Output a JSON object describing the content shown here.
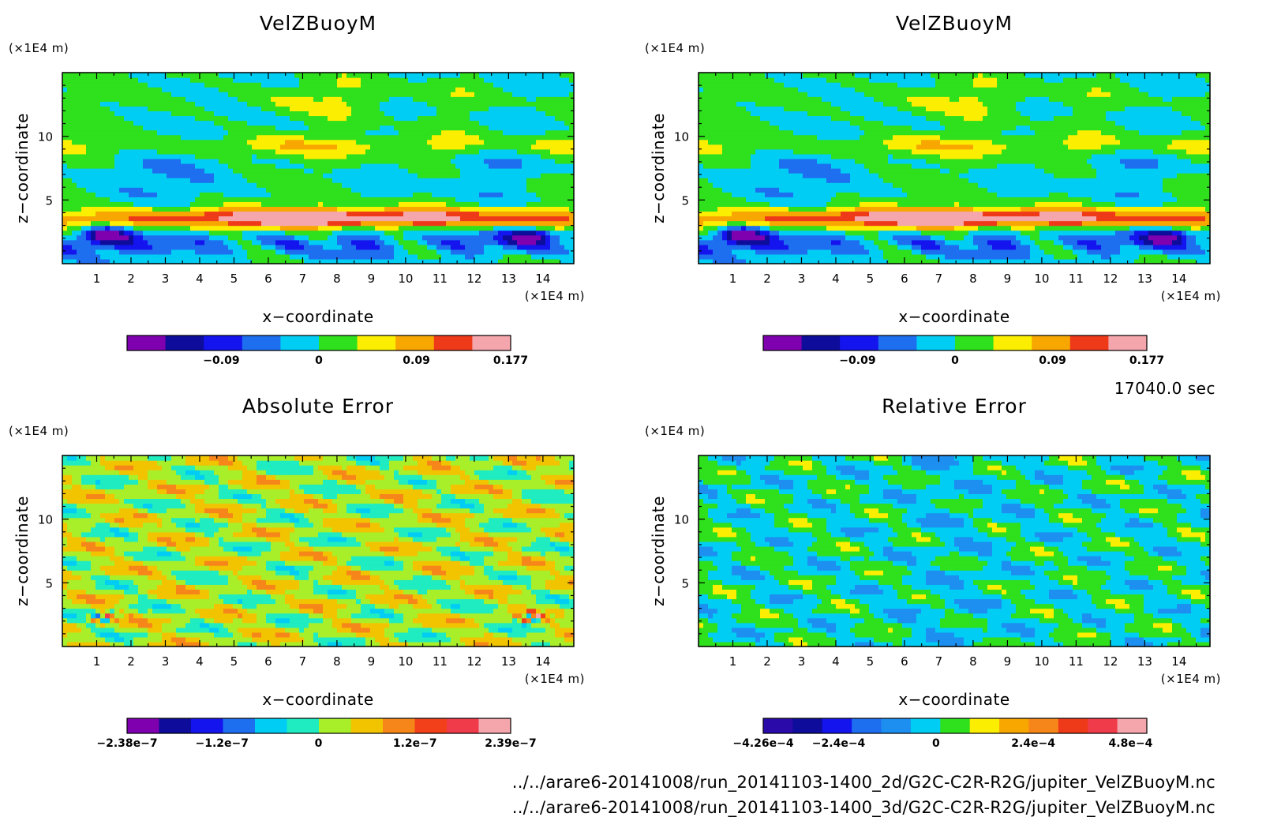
{
  "figure": {
    "time_text": "17040.0 sec",
    "footer_lines": [
      "../../arare6-20141008/run_20141103-1400_2d/G2C-C2R-R2G/jupiter_VelZBuoyM.nc",
      "../../arare6-20141008/run_20141103-1400_3d/G2C-C2R-R2G/jupiter_VelZBuoyM.nc"
    ]
  },
  "colors": {
    "palette_main": [
      "#7f00ae",
      "#0d0c9b",
      "#1414ee",
      "#1e6ef0",
      "#00cdf4",
      "#2fe01c",
      "#fcee00",
      "#f8a600",
      "#ef3a1a",
      "#f5a6ad"
    ],
    "palette_abs": [
      "#7f00ae",
      "#0d0c9b",
      "#1414ee",
      "#1e6ef0",
      "#00cdf4",
      "#1fecc0",
      "#a8ef2a",
      "#f2c400",
      "#f7861a",
      "#f2401a",
      "#f03c4a",
      "#f5a6ad"
    ],
    "palette_rel": [
      "#2a0aa8",
      "#0d0c9b",
      "#1414ee",
      "#1e6ef0",
      "#1c8ff0",
      "#00cdf4",
      "#2fe01c",
      "#fcee00",
      "#f8a600",
      "#f7861a",
      "#ef3a1a",
      "#f03c4a",
      "#f5a6ad"
    ]
  },
  "chart_data": [
    {
      "type": "heatmap",
      "title": "VelZBuoyM",
      "xlabel": "x−coordinate",
      "ylabel": "z−coordinate",
      "x_unit": "(×1E4 m)",
      "y_unit": "(×1E4 m)",
      "xlim": [
        0,
        14.9
      ],
      "ylim": [
        0,
        15
      ],
      "x_ticks": [
        "1",
        "2",
        "3",
        "4",
        "5",
        "6",
        "7",
        "8",
        "9",
        "10",
        "11",
        "12",
        "13",
        "14"
      ],
      "y_ticks": [
        "5",
        "10"
      ],
      "colorbar": {
        "palette": "palette_main",
        "labels": [
          "−0.09",
          "0",
          "0.09",
          "0.177"
        ],
        "label_values": [
          -0.09,
          0,
          0.09,
          0.177
        ],
        "range": [
          -0.177,
          0.177
        ]
      },
      "field": "velz"
    },
    {
      "type": "heatmap",
      "title": "VelZBuoyM",
      "xlabel": "x−coordinate",
      "ylabel": "z−coordinate",
      "x_unit": "(×1E4 m)",
      "y_unit": "(×1E4 m)",
      "xlim": [
        0,
        14.9
      ],
      "ylim": [
        0,
        15
      ],
      "x_ticks": [
        "1",
        "2",
        "3",
        "4",
        "5",
        "6",
        "7",
        "8",
        "9",
        "10",
        "11",
        "12",
        "13",
        "14"
      ],
      "y_ticks": [
        "5",
        "10"
      ],
      "colorbar": {
        "palette": "palette_main",
        "labels": [
          "−0.09",
          "0",
          "0.09",
          "0.177"
        ],
        "label_values": [
          -0.09,
          0,
          0.09,
          0.177
        ],
        "range": [
          -0.177,
          0.177
        ]
      },
      "field": "velz"
    },
    {
      "type": "heatmap",
      "title": "Absolute Error",
      "xlabel": "x−coordinate",
      "ylabel": "z−coordinate",
      "x_unit": "(×1E4 m)",
      "y_unit": "(×1E4 m)",
      "xlim": [
        0,
        14.9
      ],
      "ylim": [
        0,
        15
      ],
      "x_ticks": [
        "1",
        "2",
        "3",
        "4",
        "5",
        "6",
        "7",
        "8",
        "9",
        "10",
        "11",
        "12",
        "13",
        "14"
      ],
      "y_ticks": [
        "5",
        "10"
      ],
      "colorbar": {
        "palette": "palette_abs",
        "labels": [
          "−2.38e−7",
          "−1.2e−7",
          "0",
          "1.2e−7",
          "2.39e−7"
        ],
        "label_values": [
          -2.38e-07,
          -1.2e-07,
          0,
          1.2e-07,
          2.39e-07
        ],
        "range": [
          -2.38e-07,
          2.39e-07
        ]
      },
      "field": "abs"
    },
    {
      "type": "heatmap",
      "title": "Relative Error",
      "xlabel": "x−coordinate",
      "ylabel": "z−coordinate",
      "x_unit": "(×1E4 m)",
      "y_unit": "(×1E4 m)",
      "xlim": [
        0,
        14.9
      ],
      "ylim": [
        0,
        15
      ],
      "x_ticks": [
        "1",
        "2",
        "3",
        "4",
        "5",
        "6",
        "7",
        "8",
        "9",
        "10",
        "11",
        "12",
        "13",
        "14"
      ],
      "y_ticks": [
        "5",
        "10"
      ],
      "colorbar": {
        "palette": "palette_rel",
        "labels": [
          "−4.26e−4",
          "−2.4e−4",
          "0",
          "2.4e−4",
          "4.8e−4"
        ],
        "label_values": [
          -0.000426,
          -0.00024,
          0,
          0.00024,
          0.00048
        ],
        "range": [
          -0.000426,
          0.00052
        ]
      },
      "field": "rel"
    }
  ]
}
